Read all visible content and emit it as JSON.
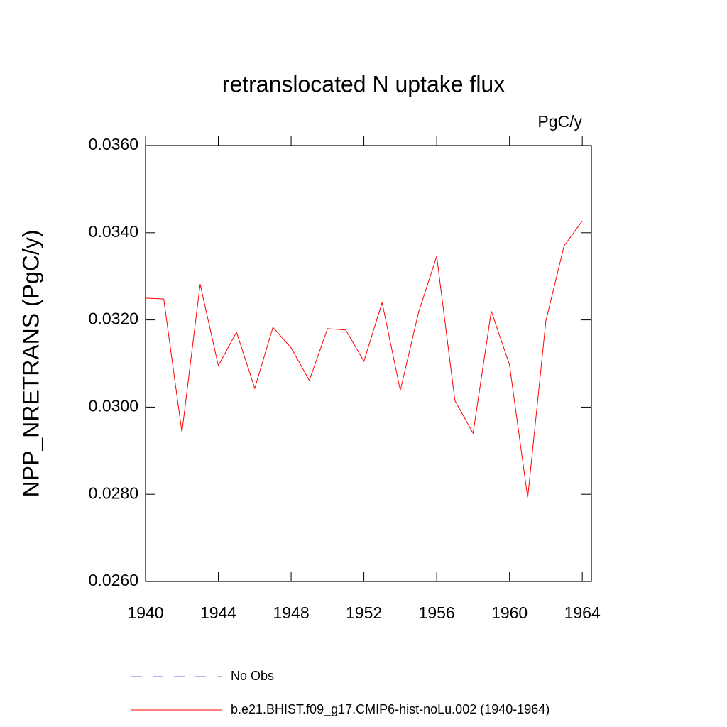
{
  "chart_data": {
    "type": "line",
    "title": "retranslocated N uptake flux",
    "units_label": "PgC/y",
    "y_label": "NPP_NRETRANS  (PgC/y)",
    "x": [
      1940,
      1941,
      1942,
      1943,
      1944,
      1945,
      1946,
      1947,
      1948,
      1949,
      1950,
      1951,
      1952,
      1953,
      1954,
      1955,
      1956,
      1957,
      1958,
      1959,
      1960,
      1961,
      1962,
      1963,
      1964
    ],
    "series": [
      {
        "name": "b.e21.BHIST.f09_g17.CMIP6-hist-noLu.002 (1940-1964)",
        "color": "#ff0000",
        "values": [
          0.0325,
          0.03248,
          0.02942,
          0.03282,
          0.03095,
          0.03172,
          0.03043,
          0.03183,
          0.03136,
          0.03061,
          0.0318,
          0.03177,
          0.03105,
          0.0324,
          0.03038,
          0.03217,
          0.03346,
          0.03015,
          0.0294,
          0.0322,
          0.03097,
          0.02792,
          0.03198,
          0.0337,
          0.03427
        ]
      }
    ],
    "reference": {
      "name": "No Obs",
      "color": "#6b6bd6",
      "dashed": true
    },
    "xlim": [
      1940,
      1964.5
    ],
    "xticks": [
      1940,
      1944,
      1948,
      1952,
      1956,
      1960,
      1964
    ],
    "ylim": [
      0.026,
      0.036
    ],
    "yticks": [
      {
        "value": 0.026,
        "label": "0.0260"
      },
      {
        "value": 0.028,
        "label": "0.0280"
      },
      {
        "value": 0.03,
        "label": "0.0300"
      },
      {
        "value": 0.032,
        "label": "0.0320"
      },
      {
        "value": 0.034,
        "label": "0.0340"
      },
      {
        "value": 0.036,
        "label": "0.0360"
      }
    ],
    "grid": false
  }
}
